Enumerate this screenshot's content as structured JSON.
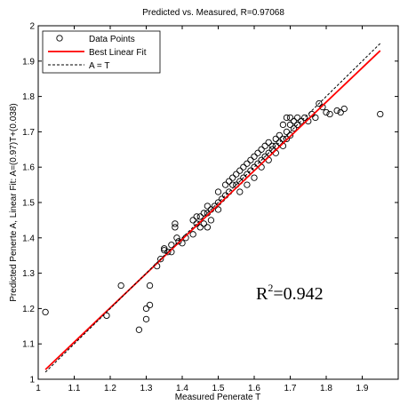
{
  "chart_data": {
    "type": "scatter",
    "title": "Predicted vs. Measured, R=0.97068",
    "xlabel": "Measured Penerate T",
    "ylabel": "Predicted Penerte A,  Linear Fit: A=(0.97)T+(0.038)",
    "xlim": [
      1,
      2
    ],
    "ylim": [
      1,
      2
    ],
    "x_ticks": [
      "1",
      "1.1",
      "1.2",
      "1.3",
      "1.4",
      "1.5",
      "1.6",
      "1.7",
      "1.8",
      "1.9"
    ],
    "y_ticks": [
      "1",
      "1.1",
      "1.2",
      "1.3",
      "1.4",
      "1.5",
      "1.6",
      "1.7",
      "1.8",
      "1.9",
      "2"
    ],
    "grid": false,
    "legend_position": "top-left",
    "annotation": {
      "base": "R",
      "sup": "2",
      "rest": "=0.942"
    },
    "series": [
      {
        "name": "Data Points",
        "kind": "scatter",
        "color": "#000000",
        "points": [
          [
            1.02,
            1.19
          ],
          [
            1.19,
            1.18
          ],
          [
            1.23,
            1.265
          ],
          [
            1.28,
            1.14
          ],
          [
            1.3,
            1.17
          ],
          [
            1.3,
            1.2
          ],
          [
            1.31,
            1.21
          ],
          [
            1.31,
            1.265
          ],
          [
            1.33,
            1.32
          ],
          [
            1.34,
            1.34
          ],
          [
            1.35,
            1.365
          ],
          [
            1.35,
            1.37
          ],
          [
            1.36,
            1.36
          ],
          [
            1.37,
            1.36
          ],
          [
            1.37,
            1.38
          ],
          [
            1.38,
            1.43
          ],
          [
            1.38,
            1.44
          ],
          [
            1.385,
            1.4
          ],
          [
            1.39,
            1.39
          ],
          [
            1.4,
            1.385
          ],
          [
            1.41,
            1.4
          ],
          [
            1.43,
            1.41
          ],
          [
            1.43,
            1.45
          ],
          [
            1.44,
            1.44
          ],
          [
            1.45,
            1.43
          ],
          [
            1.45,
            1.46
          ],
          [
            1.46,
            1.44
          ],
          [
            1.46,
            1.47
          ],
          [
            1.47,
            1.43
          ],
          [
            1.47,
            1.47
          ],
          [
            1.48,
            1.48
          ],
          [
            1.48,
            1.45
          ],
          [
            1.49,
            1.49
          ],
          [
            1.5,
            1.48
          ],
          [
            1.5,
            1.5
          ],
          [
            1.51,
            1.51
          ],
          [
            1.52,
            1.55
          ],
          [
            1.52,
            1.52
          ],
          [
            1.53,
            1.53
          ],
          [
            1.53,
            1.56
          ],
          [
            1.54,
            1.55
          ],
          [
            1.54,
            1.57
          ],
          [
            1.55,
            1.55
          ],
          [
            1.55,
            1.58
          ],
          [
            1.56,
            1.56
          ],
          [
            1.56,
            1.59
          ],
          [
            1.57,
            1.57
          ],
          [
            1.57,
            1.6
          ],
          [
            1.58,
            1.58
          ],
          [
            1.58,
            1.61
          ],
          [
            1.59,
            1.59
          ],
          [
            1.59,
            1.62
          ],
          [
            1.6,
            1.6
          ],
          [
            1.6,
            1.63
          ],
          [
            1.61,
            1.61
          ],
          [
            1.61,
            1.64
          ],
          [
            1.62,
            1.62
          ],
          [
            1.62,
            1.65
          ],
          [
            1.63,
            1.63
          ],
          [
            1.63,
            1.66
          ],
          [
            1.64,
            1.64
          ],
          [
            1.64,
            1.67
          ],
          [
            1.65,
            1.65
          ],
          [
            1.65,
            1.66
          ],
          [
            1.66,
            1.66
          ],
          [
            1.66,
            1.68
          ],
          [
            1.67,
            1.67
          ],
          [
            1.67,
            1.69
          ],
          [
            1.68,
            1.68
          ],
          [
            1.68,
            1.72
          ],
          [
            1.69,
            1.7
          ],
          [
            1.69,
            1.74
          ],
          [
            1.7,
            1.72
          ],
          [
            1.7,
            1.74
          ],
          [
            1.71,
            1.73
          ],
          [
            1.71,
            1.71
          ],
          [
            1.72,
            1.74
          ],
          [
            1.72,
            1.72
          ],
          [
            1.73,
            1.73
          ],
          [
            1.74,
            1.74
          ],
          [
            1.75,
            1.73
          ],
          [
            1.76,
            1.75
          ],
          [
            1.77,
            1.74
          ],
          [
            1.78,
            1.78
          ],
          [
            1.79,
            1.77
          ],
          [
            1.8,
            1.755
          ],
          [
            1.81,
            1.75
          ],
          [
            1.83,
            1.76
          ],
          [
            1.84,
            1.755
          ],
          [
            1.85,
            1.765
          ],
          [
            1.95,
            1.75
          ],
          [
            1.56,
            1.53
          ],
          [
            1.58,
            1.55
          ],
          [
            1.6,
            1.57
          ],
          [
            1.62,
            1.6
          ],
          [
            1.64,
            1.62
          ],
          [
            1.66,
            1.64
          ],
          [
            1.68,
            1.66
          ],
          [
            1.5,
            1.53
          ],
          [
            1.47,
            1.49
          ],
          [
            1.44,
            1.46
          ],
          [
            1.69,
            1.68
          ],
          [
            1.7,
            1.69
          ]
        ]
      },
      {
        "name": "Best Linear Fit",
        "kind": "line",
        "color": "#ff0000",
        "x": [
          1.02,
          1.95
        ],
        "y": [
          1.0274,
          1.9295
        ]
      },
      {
        "name": "A = T",
        "kind": "dashed",
        "color": "#000000",
        "x": [
          1.02,
          1.95
        ],
        "y": [
          1.02,
          1.95
        ]
      }
    ]
  }
}
